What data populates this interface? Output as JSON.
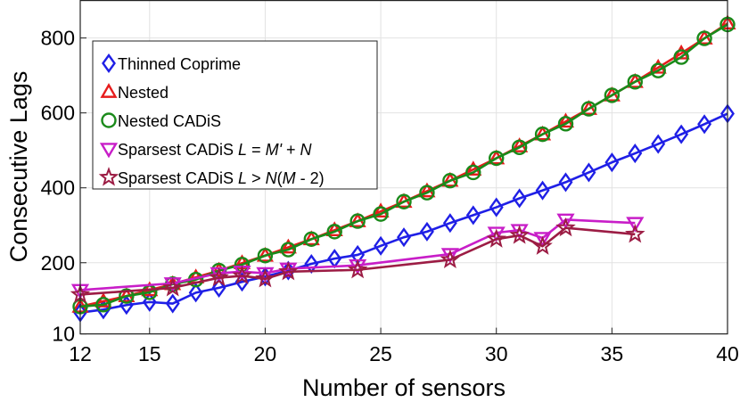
{
  "chart_data": {
    "type": "line",
    "title": "",
    "xlabel": "Number of sensors",
    "ylabel": "Consecutive Lags",
    "xlim": [
      12,
      40
    ],
    "ylim": [
      10,
      900
    ],
    "x_ticks": [
      12,
      15,
      20,
      25,
      30,
      35,
      40
    ],
    "x_tick_labels": [
      "12",
      "15",
      "20",
      "25",
      "30",
      "35",
      "40"
    ],
    "y_ticks": [
      10,
      200,
      400,
      600,
      800
    ],
    "y_tick_labels": [
      "10",
      "200",
      "400",
      "600",
      "800"
    ],
    "grid": true,
    "legend_position": "top-left",
    "series": [
      {
        "name": "Thinned Coprime",
        "label_parts": [
          {
            "text": "Thinned Coprime",
            "italic": false
          }
        ],
        "color": "#1f1fe6",
        "marker": "diamond",
        "x": [
          12,
          13,
          14,
          15,
          16,
          17,
          18,
          19,
          20,
          21,
          22,
          23,
          24,
          25,
          26,
          27,
          28,
          29,
          30,
          31,
          32,
          33,
          34,
          35,
          36,
          37,
          38,
          39,
          40
        ],
        "y": [
          67,
          75,
          87,
          95,
          91,
          120,
          133,
          149,
          163,
          179,
          197,
          211,
          221,
          245,
          268,
          283,
          306,
          327,
          348,
          372,
          393,
          415,
          441,
          468,
          492,
          517,
          543,
          570,
          598
        ]
      },
      {
        "name": "Nested",
        "label_parts": [
          {
            "text": "Nested",
            "italic": false
          }
        ],
        "color": "#e61c1c",
        "marker": "triangle-up",
        "x": [
          12,
          13,
          14,
          15,
          16,
          17,
          18,
          19,
          20,
          21,
          22,
          23,
          24,
          25,
          26,
          27,
          28,
          29,
          30,
          31,
          32,
          33,
          34,
          35,
          36,
          37,
          38,
          39,
          40
        ],
        "y": [
          83,
          97,
          111,
          127,
          143,
          161,
          179,
          199,
          219,
          241,
          263,
          287,
          311,
          337,
          363,
          391,
          419,
          449,
          479,
          511,
          543,
          577,
          611,
          647,
          683,
          721,
          759,
          799,
          839
        ]
      },
      {
        "name": "Nested CADiS",
        "label_parts": [
          {
            "text": "Nested CADiS",
            "italic": false
          }
        ],
        "color": "#1a8a1a",
        "marker": "circle",
        "x": [
          12,
          13,
          14,
          15,
          16,
          17,
          18,
          19,
          20,
          21,
          22,
          23,
          24,
          25,
          26,
          27,
          28,
          29,
          30,
          31,
          32,
          33,
          34,
          35,
          36,
          37,
          38,
          39,
          40
        ],
        "y": [
          83,
          88,
          111,
          121,
          143,
          155,
          179,
          195,
          219,
          235,
          263,
          283,
          311,
          330,
          363,
          387,
          419,
          441,
          479,
          508,
          543,
          571,
          611,
          647,
          683,
          713,
          749,
          799,
          836
        ]
      },
      {
        "name": "Sparsest CADiS L = M' + N",
        "label_parts": [
          {
            "text": "Sparsest CADiS ",
            "italic": false
          },
          {
            "text": "L",
            "italic": true
          },
          {
            "text": " = ",
            "italic": false
          },
          {
            "text": "M'",
            "italic": true
          },
          {
            "text": " + ",
            "italic": false
          },
          {
            "text": "N",
            "italic": true
          }
        ],
        "color": "#c81ec8",
        "marker": "triangle-down",
        "x": [
          12,
          16,
          18,
          19,
          20,
          21,
          24,
          28,
          30,
          31,
          32,
          33,
          36
        ],
        "y": [
          127,
          145,
          172,
          176,
          172,
          184,
          193,
          223,
          280,
          287,
          266,
          315,
          306
        ]
      },
      {
        "name": "Sparsest CADiS L > N(M - 2)",
        "label_parts": [
          {
            "text": "Sparsest CADiS ",
            "italic": false
          },
          {
            "text": "L",
            "italic": true
          },
          {
            "text": " > ",
            "italic": false
          },
          {
            "text": "N",
            "italic": true
          },
          {
            "text": "(",
            "italic": false
          },
          {
            "text": "M",
            "italic": true
          },
          {
            "text": " - 2)",
            "italic": false
          }
        ],
        "color": "#9c1c44",
        "marker": "star",
        "x": [
          12,
          16,
          18,
          19,
          20,
          21,
          24,
          28,
          30,
          31,
          32,
          33,
          36
        ],
        "y": [
          115,
          133,
          160,
          165,
          157,
          176,
          181,
          208,
          263,
          273,
          244,
          293,
          276
        ]
      }
    ]
  }
}
